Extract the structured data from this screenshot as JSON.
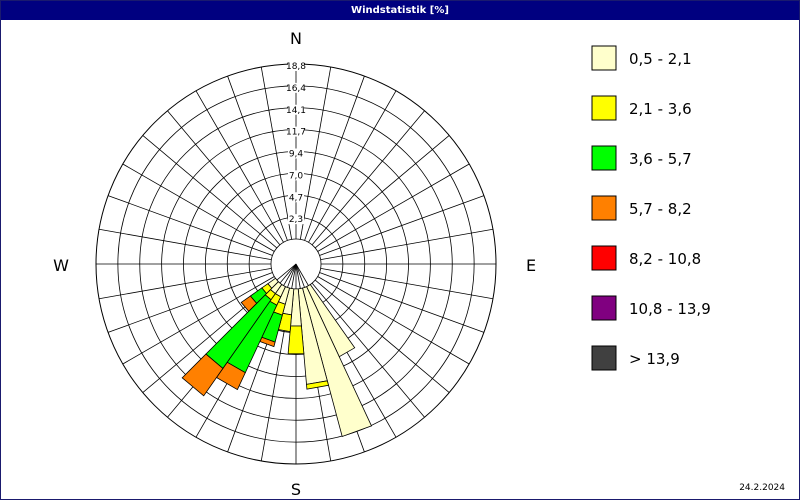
{
  "title": "Windstatistik [%]",
  "date": "24.2.2024",
  "colors": {
    "titlebar": "#000080",
    "grid": "#000000",
    "classes": [
      "#ffffcc",
      "#ffff00",
      "#00ff00",
      "#ff8000",
      "#ff0000",
      "#800080",
      "#404040"
    ]
  },
  "chart_data": {
    "type": "polar-bar",
    "title": "Windstatistik [%]",
    "compass": [
      "N",
      "E",
      "S",
      "W"
    ],
    "radial_ticks": [
      "2,3",
      "4,7",
      "7,0",
      "9,4",
      "11,7",
      "14,1",
      "16,4",
      "18,8"
    ],
    "radial_max": 18.8,
    "sector_count": 36,
    "legend": [
      {
        "label": "0,5 - 2,1",
        "color": "#ffffcc"
      },
      {
        "label": "2,1 - 3,6",
        "color": "#ffff00"
      },
      {
        "label": "3,6 - 5,7",
        "color": "#00ff00"
      },
      {
        "label": "5,7 - 8,2",
        "color": "#ff8000"
      },
      {
        "label": "8,2 - 10,8",
        "color": "#ff0000"
      },
      {
        "label": "10,8 - 13,9",
        "color": "#800080"
      },
      {
        "label": "> 13,9",
        "color": "#404040"
      }
    ],
    "sectors": [
      {
        "direction_deg": 150,
        "values": [
          8.3,
          0,
          0,
          0,
          0,
          0,
          0
        ]
      },
      {
        "direction_deg": 160,
        "values": [
          16.5,
          0,
          0,
          0,
          0,
          0,
          0
        ]
      },
      {
        "direction_deg": 170,
        "values": [
          10.3,
          0.5,
          0,
          0,
          0,
          0,
          0
        ]
      },
      {
        "direction_deg": 180,
        "values": [
          4.0,
          3.0,
          0,
          0,
          0,
          0,
          0
        ]
      },
      {
        "direction_deg": 190,
        "values": [
          2.8,
          1.8,
          0,
          0,
          0,
          0,
          0
        ]
      },
      {
        "direction_deg": 200,
        "values": [
          1.8,
          1.2,
          3.0,
          0.5,
          0,
          0,
          0
        ]
      },
      {
        "direction_deg": 210,
        "values": [
          1.2,
          1.0,
          8.0,
          2.0,
          0,
          0,
          0
        ]
      },
      {
        "direction_deg": 220,
        "values": [
          1.2,
          0.8,
          9.0,
          3.6,
          0,
          0,
          0
        ]
      },
      {
        "direction_deg": 230,
        "values": [
          1.0,
          0.8,
          1.5,
          1.2,
          0,
          0,
          0
        ]
      }
    ]
  }
}
